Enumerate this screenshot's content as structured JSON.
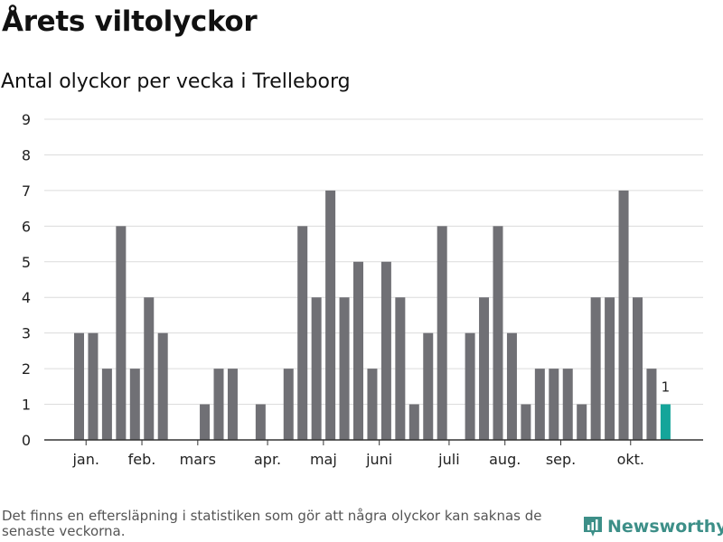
{
  "header": {
    "title": "Årets viltolyckor",
    "subtitle": "Antal olyckor per vecka i Trelleborg"
  },
  "footer": {
    "note": "Det finns en eftersläpning i statistiken som gör att några olyckor kan saknas de senaste veckorna.",
    "brand": "Newsworthy",
    "brand_icon": "newsworthy-chart-icon"
  },
  "colors": {
    "bar": "#707075",
    "highlight": "#15a59a",
    "grid": "#dcdcdc",
    "axis": "#333333",
    "brand": "#3d8f88"
  },
  "chart_data": {
    "type": "bar",
    "title": "Årets viltolyckor",
    "subtitle": "Antal olyckor per vecka i Trelleborg",
    "xlabel": "",
    "ylabel": "",
    "x": [
      1,
      2,
      3,
      4,
      5,
      6,
      7,
      8,
      9,
      10,
      11,
      12,
      13,
      14,
      15,
      16,
      17,
      18,
      19,
      20,
      21,
      22,
      23,
      24,
      25,
      26,
      27,
      28,
      29,
      30,
      31,
      32,
      33,
      34,
      35,
      36,
      37,
      38,
      39,
      40,
      41,
      42,
      43,
      44
    ],
    "values": [
      3,
      3,
      2,
      6,
      2,
      4,
      3,
      0,
      0,
      1,
      2,
      2,
      0,
      1,
      0,
      2,
      6,
      4,
      7,
      4,
      5,
      2,
      5,
      4,
      1,
      3,
      6,
      0,
      3,
      4,
      6,
      3,
      1,
      2,
      2,
      2,
      1,
      4,
      4,
      7,
      4,
      2,
      1,
      null
    ],
    "highlight_index": 42,
    "highlight_label": "1",
    "ylim": [
      0,
      9
    ],
    "yticks": [
      "0",
      "1",
      "2",
      "3",
      "4",
      "5",
      "6",
      "7",
      "8",
      "9"
    ],
    "month_ticks": [
      {
        "label": "jan.",
        "week": 1.5
      },
      {
        "label": "feb.",
        "week": 5.5
      },
      {
        "label": "mars",
        "week": 9.5
      },
      {
        "label": "apr.",
        "week": 14.5
      },
      {
        "label": "maj",
        "week": 18.5
      },
      {
        "label": "juni",
        "week": 22.5
      },
      {
        "label": "juli",
        "week": 27.5
      },
      {
        "label": "aug.",
        "week": 31.5
      },
      {
        "label": "sep.",
        "week": 35.5
      },
      {
        "label": "okt.",
        "week": 40.5
      }
    ],
    "grid": true,
    "legend": "none"
  }
}
